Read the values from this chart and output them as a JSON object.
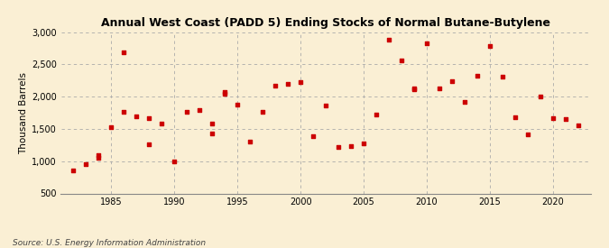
{
  "title": "Annual West Coast (PADD 5) Ending Stocks of Normal Butane-Butylene",
  "ylabel": "Thousand Barrels",
  "source": "Source: U.S. Energy Information Administration",
  "background_color": "#faefd4",
  "marker_color": "#cc0000",
  "xlim": [
    1981,
    2023
  ],
  "ylim": [
    500,
    3000
  ],
  "yticks": [
    500,
    1000,
    1500,
    2000,
    2500,
    3000
  ],
  "xticks": [
    1985,
    1990,
    1995,
    2000,
    2005,
    2010,
    2015,
    2020
  ],
  "data": [
    [
      1982,
      850
    ],
    [
      1983,
      960
    ],
    [
      1984,
      1100
    ],
    [
      1984,
      1050
    ],
    [
      1985,
      1530
    ],
    [
      1986,
      1760
    ],
    [
      1987,
      1700
    ],
    [
      1988,
      1670
    ],
    [
      1988,
      1260
    ],
    [
      1989,
      1580
    ],
    [
      1990,
      1000
    ],
    [
      1991,
      1770
    ],
    [
      1992,
      1800
    ],
    [
      1993,
      1430
    ],
    [
      1993,
      1580
    ],
    [
      1994,
      2040
    ],
    [
      1994,
      2080
    ],
    [
      1995,
      1880
    ],
    [
      1996,
      1300
    ],
    [
      1997,
      1760
    ],
    [
      1998,
      2170
    ],
    [
      1999,
      2200
    ],
    [
      2000,
      2230
    ],
    [
      2001,
      1390
    ],
    [
      2002,
      1870
    ],
    [
      2003,
      1220
    ],
    [
      2004,
      1230
    ],
    [
      2005,
      1270
    ],
    [
      2006,
      1730
    ],
    [
      2007,
      2880
    ],
    [
      2008,
      2560
    ],
    [
      2009,
      2120
    ],
    [
      2009,
      2130
    ],
    [
      2010,
      2830
    ],
    [
      2011,
      2130
    ],
    [
      2012,
      2240
    ],
    [
      2013,
      1920
    ],
    [
      2014,
      2330
    ],
    [
      2015,
      2780
    ],
    [
      2016,
      2310
    ],
    [
      2017,
      1680
    ],
    [
      2018,
      1420
    ],
    [
      2019,
      2000
    ],
    [
      2020,
      1670
    ],
    [
      2021,
      1650
    ],
    [
      2022,
      1560
    ],
    [
      1986,
      2690
    ]
  ]
}
